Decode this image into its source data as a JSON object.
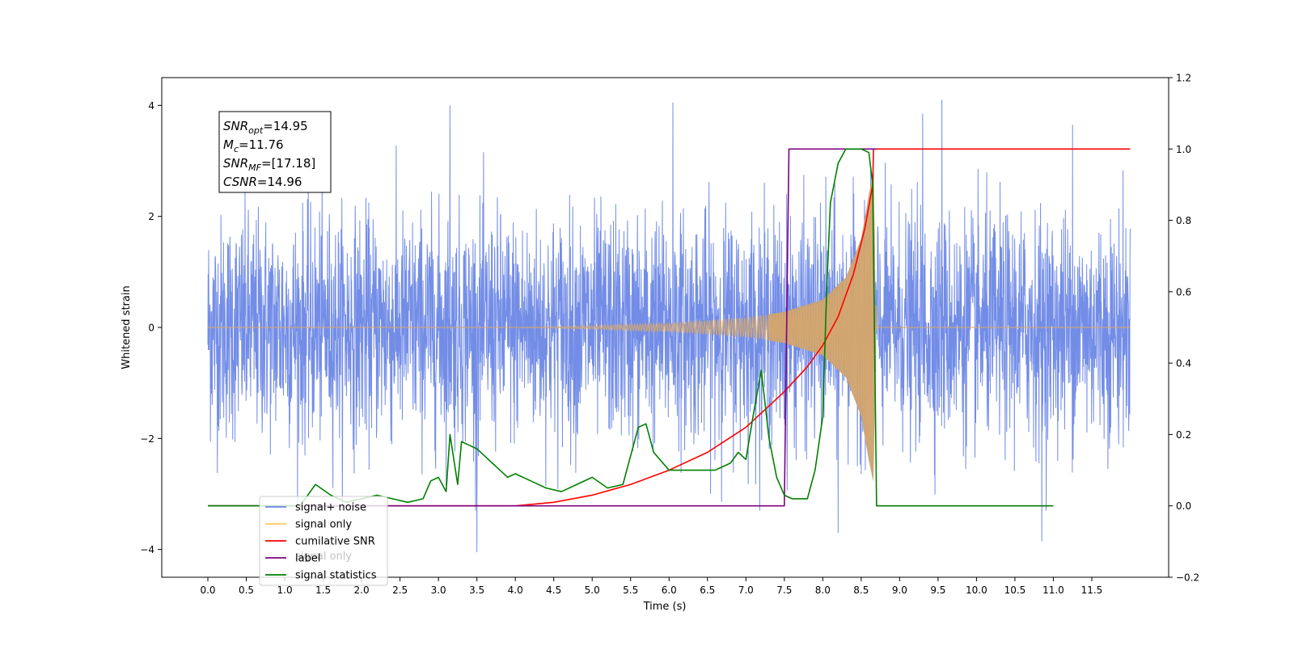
{
  "chart_data": {
    "type": "line",
    "xlabel": "Time (s)",
    "ylabel": "Whitened strain",
    "xlim": [
      -0.6,
      12.5
    ],
    "ylim_left": [
      -4.5,
      4.5
    ],
    "ylim_right": [
      -0.2,
      1.2
    ],
    "x_ticks": [
      0.0,
      0.5,
      1.0,
      1.5,
      2.0,
      2.5,
      3.0,
      3.5,
      4.0,
      4.5,
      5.0,
      5.5,
      6.0,
      6.5,
      7.0,
      7.5,
      8.0,
      8.5,
      9.0,
      9.5,
      10.0,
      10.5,
      11.0,
      11.5
    ],
    "x_tick_labels": [
      "0.0",
      "0.5",
      "1.0",
      "1.5",
      "2.0",
      "2.5",
      "3.0",
      "3.5",
      "4.0",
      "4.5",
      "5.0",
      "5.5",
      "6.0",
      "6.5",
      "7.0",
      "7.5",
      "8.0",
      "8.5",
      "9.0",
      "9.5",
      "10.0",
      "10.5",
      "11.0",
      "11.5"
    ],
    "y_left_ticks": [
      -4,
      -2,
      0,
      2,
      4
    ],
    "y_left_tick_labels": [
      "−4",
      "−2",
      "0",
      "2",
      "4"
    ],
    "y_right_ticks": [
      -0.2,
      0.0,
      0.2,
      0.4,
      0.6,
      0.8,
      1.0,
      1.2
    ],
    "y_right_tick_labels": [
      "−0.2",
      "0.0",
      "0.2",
      "0.4",
      "0.6",
      "0.8",
      "1.0",
      "1.2"
    ],
    "annotation": {
      "lines": [
        {
          "base": "SNR",
          "sub": "opt",
          "value": "=14.95"
        },
        {
          "base": "M",
          "sub": "c",
          "value": "=11.76"
        },
        {
          "base": "SNR",
          "sub": "MF",
          "value": "=[17.18]"
        },
        {
          "base": "CSNR",
          "sub": "",
          "value": "=14.96"
        }
      ]
    },
    "legend": {
      "placement": "lower-left",
      "entries": [
        {
          "label": "signal+ noise",
          "color": "#6b87e6"
        },
        {
          "label": "signal only",
          "color": "#ffc85a"
        },
        {
          "label": "cumilative SNR",
          "color": "#ff0000"
        },
        {
          "label": "label",
          "color": "#800080"
        },
        {
          "label": "signal statistics",
          "color": "#008000"
        }
      ],
      "hidden_text": "signal only"
    },
    "series": [
      {
        "name": "signal+ noise",
        "axis": "left",
        "color": "#6b87e6",
        "x_start": 0.0,
        "x_end": 12.0,
        "noise_std": 1.0,
        "spike_extremes": [
          {
            "x": 3.15,
            "y": 4.0
          },
          {
            "x": 6.05,
            "y": 4.05
          },
          {
            "x": 9.55,
            "y": 4.1
          },
          {
            "x": 9.3,
            "y": 3.85
          },
          {
            "x": 11.25,
            "y": 3.65
          },
          {
            "x": 3.5,
            "y": -4.05
          },
          {
            "x": 8.2,
            "y": -3.7
          },
          {
            "x": 10.85,
            "y": -3.85
          }
        ]
      },
      {
        "name": "signal only",
        "axis": "left",
        "color": "#ffc85a",
        "x_start": 0.0,
        "x_end": 12.0,
        "envelope": [
          [
            0.0,
            0.0
          ],
          [
            4.0,
            0.0
          ],
          [
            5.0,
            0.03
          ],
          [
            6.0,
            0.08
          ],
          [
            7.0,
            0.18
          ],
          [
            7.5,
            0.28
          ],
          [
            8.0,
            0.5
          ],
          [
            8.3,
            0.9
          ],
          [
            8.5,
            1.6
          ],
          [
            8.6,
            2.4
          ],
          [
            8.66,
            2.8
          ],
          [
            8.7,
            0.03
          ],
          [
            8.75,
            0.0
          ],
          [
            12.0,
            0.0
          ]
        ],
        "x_fill": [
          7.3,
          8.68
        ]
      },
      {
        "name": "cumilative SNR",
        "axis": "right",
        "color": "#ff0000",
        "x": [
          0.0,
          3.0,
          4.0,
          4.5,
          5.0,
          5.5,
          6.0,
          6.5,
          7.0,
          7.5,
          7.8,
          8.0,
          8.2,
          8.4,
          8.55,
          8.65,
          8.66,
          12.0
        ],
        "y": [
          0.0,
          0.0,
          0.0,
          0.01,
          0.03,
          0.06,
          0.1,
          0.15,
          0.22,
          0.32,
          0.39,
          0.45,
          0.53,
          0.65,
          0.78,
          0.9,
          1.0,
          1.0
        ]
      },
      {
        "name": "label",
        "axis": "right",
        "color": "#800080",
        "x": [
          0.0,
          7.5,
          7.56,
          8.68,
          8.7
        ],
        "y": [
          0.0,
          0.0,
          1.0,
          1.0,
          1.0
        ]
      },
      {
        "name": "signal statistics",
        "axis": "right",
        "color": "#008000",
        "x": [
          0.0,
          1.2,
          1.4,
          1.6,
          1.8,
          2.0,
          2.2,
          2.4,
          2.6,
          2.8,
          2.9,
          3.0,
          3.1,
          3.15,
          3.25,
          3.3,
          3.4,
          3.5,
          3.6,
          3.7,
          3.8,
          3.9,
          4.0,
          4.2,
          4.4,
          4.6,
          4.8,
          5.0,
          5.2,
          5.4,
          5.6,
          5.7,
          5.8,
          6.0,
          6.2,
          6.4,
          6.6,
          6.8,
          6.9,
          7.0,
          7.1,
          7.2,
          7.3,
          7.4,
          7.5,
          7.6,
          7.8,
          7.9,
          8.0,
          8.05,
          8.1,
          8.2,
          8.3,
          8.5,
          8.6,
          8.65,
          8.7,
          11.0
        ],
        "y": [
          0.0,
          0.0,
          0.06,
          0.03,
          0.01,
          0.02,
          0.03,
          0.02,
          0.01,
          0.02,
          0.07,
          0.08,
          0.04,
          0.2,
          0.06,
          0.18,
          0.17,
          0.16,
          0.14,
          0.12,
          0.1,
          0.08,
          0.09,
          0.07,
          0.05,
          0.04,
          0.06,
          0.08,
          0.05,
          0.06,
          0.22,
          0.23,
          0.15,
          0.1,
          0.1,
          0.1,
          0.1,
          0.12,
          0.15,
          0.13,
          0.26,
          0.38,
          0.19,
          0.08,
          0.03,
          0.02,
          0.02,
          0.1,
          0.25,
          0.6,
          0.85,
          0.96,
          1.0,
          1.0,
          0.99,
          0.9,
          0.0,
          0.0
        ]
      }
    ],
    "grid": false
  }
}
